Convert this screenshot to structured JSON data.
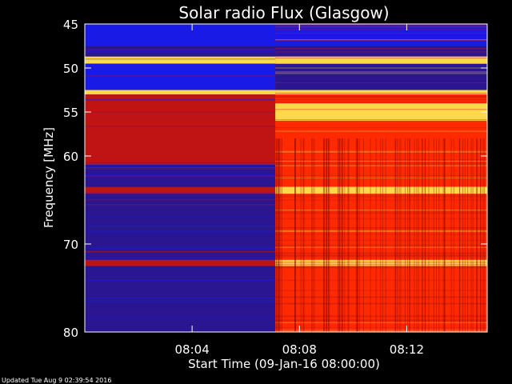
{
  "colors": {
    "background": "#000000",
    "frame": "#ffffff",
    "low": "#2a1690",
    "mid": "#c01414",
    "high": "#ff2a00",
    "hot": "#ffd84a",
    "band_blue": "#1a1ae6"
  },
  "chart_data": {
    "type": "heatmap",
    "title": "Solar radio Flux (Glasgow)",
    "xlabel": "Start Time (09-Jan-16 08:00:00)",
    "ylabel": "Frequency [MHz]",
    "x_unit": "minutes since 08:00",
    "xlim": [
      0,
      15
    ],
    "ylim": [
      45,
      80
    ],
    "y_inverted": true,
    "x_ticks": [
      {
        "value": 4,
        "label": "08:04"
      },
      {
        "value": 8,
        "label": "08:08"
      },
      {
        "value": 12,
        "label": "08:12"
      }
    ],
    "y_ticks": [
      {
        "value": 45,
        "label": "45"
      },
      {
        "value": 50,
        "label": "50"
      },
      {
        "value": 55,
        "label": "55"
      },
      {
        "value": 60,
        "label": "60"
      },
      {
        "value": 70,
        "label": "70"
      },
      {
        "value": 80,
        "label": "80"
      }
    ],
    "transition_time": 7.1,
    "regions": [
      {
        "name": "pre-burst",
        "x": [
          0,
          7.1
        ],
        "level": "low"
      },
      {
        "name": "post-burst",
        "x": [
          7.1,
          15
        ],
        "level": "high"
      }
    ],
    "bands": [
      {
        "f": [
          45.0,
          47.5
        ],
        "pre": "band_blue",
        "post": "band_blue"
      },
      {
        "f": [
          47.5,
          48.7
        ],
        "pre": "low",
        "post": "low"
      },
      {
        "f": [
          48.7,
          49.5
        ],
        "pre": "hot",
        "post": "hot"
      },
      {
        "f": [
          49.5,
          52.5
        ],
        "pre": "band_blue",
        "post": "low"
      },
      {
        "f": [
          52.5,
          53.0
        ],
        "pre": "hot",
        "post": "hot"
      },
      {
        "f": [
          53.0,
          54.0
        ],
        "pre": "mid",
        "post": "high"
      },
      {
        "f": [
          54.0,
          56.0
        ],
        "pre": "mid",
        "post": "hot"
      },
      {
        "f": [
          56.0,
          61.0
        ],
        "pre": "mid",
        "post": "high"
      },
      {
        "f": [
          61.0,
          63.5
        ],
        "pre": "low",
        "post": "high"
      },
      {
        "f": [
          63.5,
          64.3
        ],
        "pre": "mid",
        "post": "hot"
      },
      {
        "f": [
          64.3,
          71.8
        ],
        "pre": "low",
        "post": "high"
      },
      {
        "f": [
          71.8,
          72.5
        ],
        "pre": "mid",
        "post": "hot"
      },
      {
        "f": [
          72.5,
          80.0
        ],
        "pre": "low",
        "post": "high"
      }
    ]
  },
  "footer": {
    "updated": "Updated Tue Aug  9 02:39:54 2016"
  }
}
